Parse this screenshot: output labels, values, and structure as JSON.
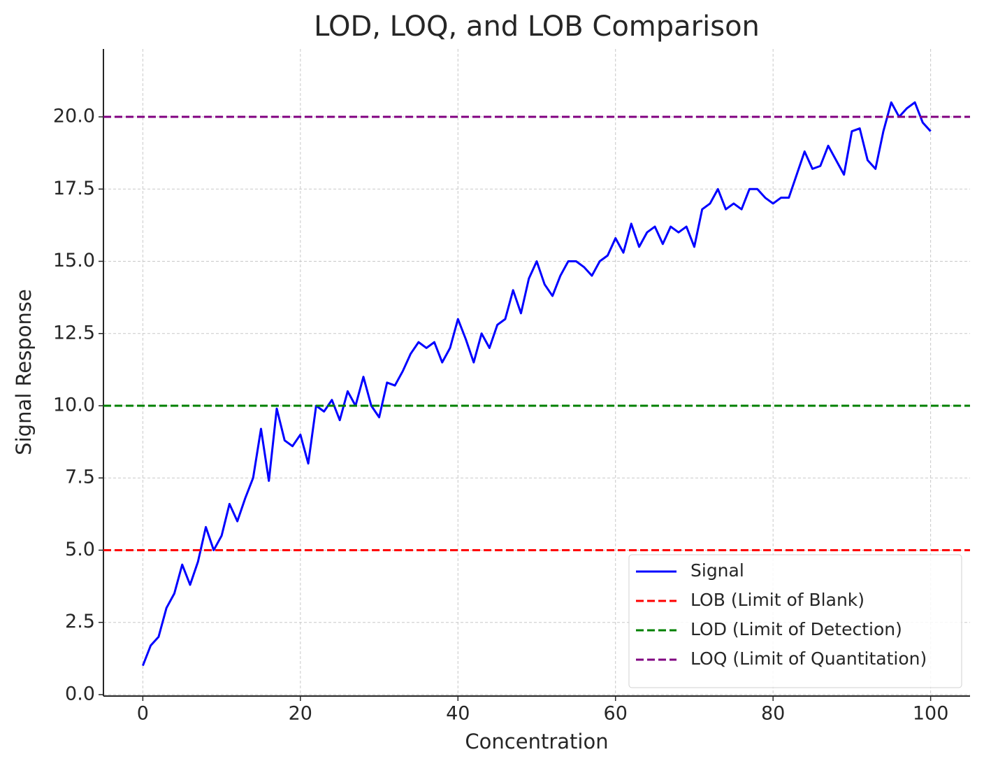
{
  "chart_data": {
    "type": "line",
    "title": "LOD, LOQ, and LOB Comparison",
    "xlabel": "Concentration",
    "ylabel": "Signal Response",
    "xlim": [
      -5,
      105
    ],
    "ylim": [
      -0.05,
      22.35
    ],
    "xticks": [
      0,
      20,
      40,
      60,
      80,
      100
    ],
    "yticks": [
      {
        "value": 0,
        "label": "0.0"
      },
      2.5,
      {
        "value": 5,
        "label": "5.0"
      },
      7.5,
      {
        "value": 10,
        "label": "10.0"
      },
      12.5,
      {
        "value": 15,
        "label": "15.0"
      },
      17.5,
      {
        "value": 20,
        "label": "20.0"
      }
    ],
    "grid": true,
    "legend": "lower right",
    "x": [
      0,
      1,
      2,
      3,
      4,
      5,
      6,
      7,
      8,
      9,
      10,
      11,
      12,
      13,
      14,
      15,
      16,
      17,
      18,
      19,
      20,
      21,
      22,
      23,
      24,
      25,
      26,
      27,
      28,
      29,
      30,
      31,
      32,
      33,
      34,
      35,
      36,
      37,
      38,
      39,
      40,
      41,
      42,
      43,
      44,
      45,
      46,
      47,
      48,
      49,
      50,
      51,
      52,
      53,
      54,
      55,
      56,
      57,
      58,
      59,
      60,
      61,
      62,
      63,
      64,
      65,
      66,
      67,
      68,
      69,
      70,
      71,
      72,
      73,
      74,
      75,
      76,
      77,
      78,
      79,
      80,
      81,
      82,
      83,
      84,
      85,
      86,
      87,
      88,
      89,
      90,
      91,
      92,
      93,
      94,
      95,
      96,
      97,
      98,
      99,
      100
    ],
    "series": [
      {
        "name": "Signal",
        "color": "#0000ff",
        "values": [
          1.0,
          1.7,
          2.0,
          3.0,
          3.5,
          4.5,
          3.8,
          4.6,
          5.8,
          5.0,
          5.5,
          6.6,
          6.0,
          6.8,
          7.5,
          9.2,
          7.4,
          9.9,
          8.8,
          8.6,
          9.0,
          8.0,
          10.0,
          9.8,
          10.2,
          9.5,
          10.5,
          10.0,
          11.0,
          10.0,
          9.6,
          10.8,
          10.7,
          11.2,
          11.8,
          12.2,
          12.0,
          12.2,
          11.5,
          12.0,
          13.0,
          12.3,
          11.5,
          12.5,
          12.0,
          12.8,
          13.0,
          14.0,
          13.2,
          14.4,
          15.0,
          14.2,
          13.8,
          14.5,
          15.0,
          15.0,
          14.8,
          14.5,
          15.0,
          15.2,
          15.8,
          15.3,
          16.3,
          15.5,
          16.0,
          16.2,
          15.6,
          16.2,
          16.0,
          16.2,
          15.5,
          16.8,
          17.0,
          17.5,
          16.8,
          17.0,
          16.8,
          17.5,
          17.5,
          17.2,
          17.0,
          17.2,
          17.2,
          18.0,
          18.8,
          18.2,
          18.3,
          19.0,
          18.5,
          18.0,
          19.5,
          19.6,
          18.5,
          18.2,
          19.5,
          20.5,
          20.0,
          20.3,
          20.5,
          19.8,
          19.5
        ]
      }
    ],
    "hlines": [
      {
        "name": "LOB (Limit of Blank)",
        "color": "#ff0000",
        "value": 5
      },
      {
        "name": "LOD (Limit of Detection)",
        "color": "#008000",
        "value": 10
      },
      {
        "name": "LOQ (Limit of Quantitation)",
        "color": "#800080",
        "value": 20
      }
    ]
  }
}
